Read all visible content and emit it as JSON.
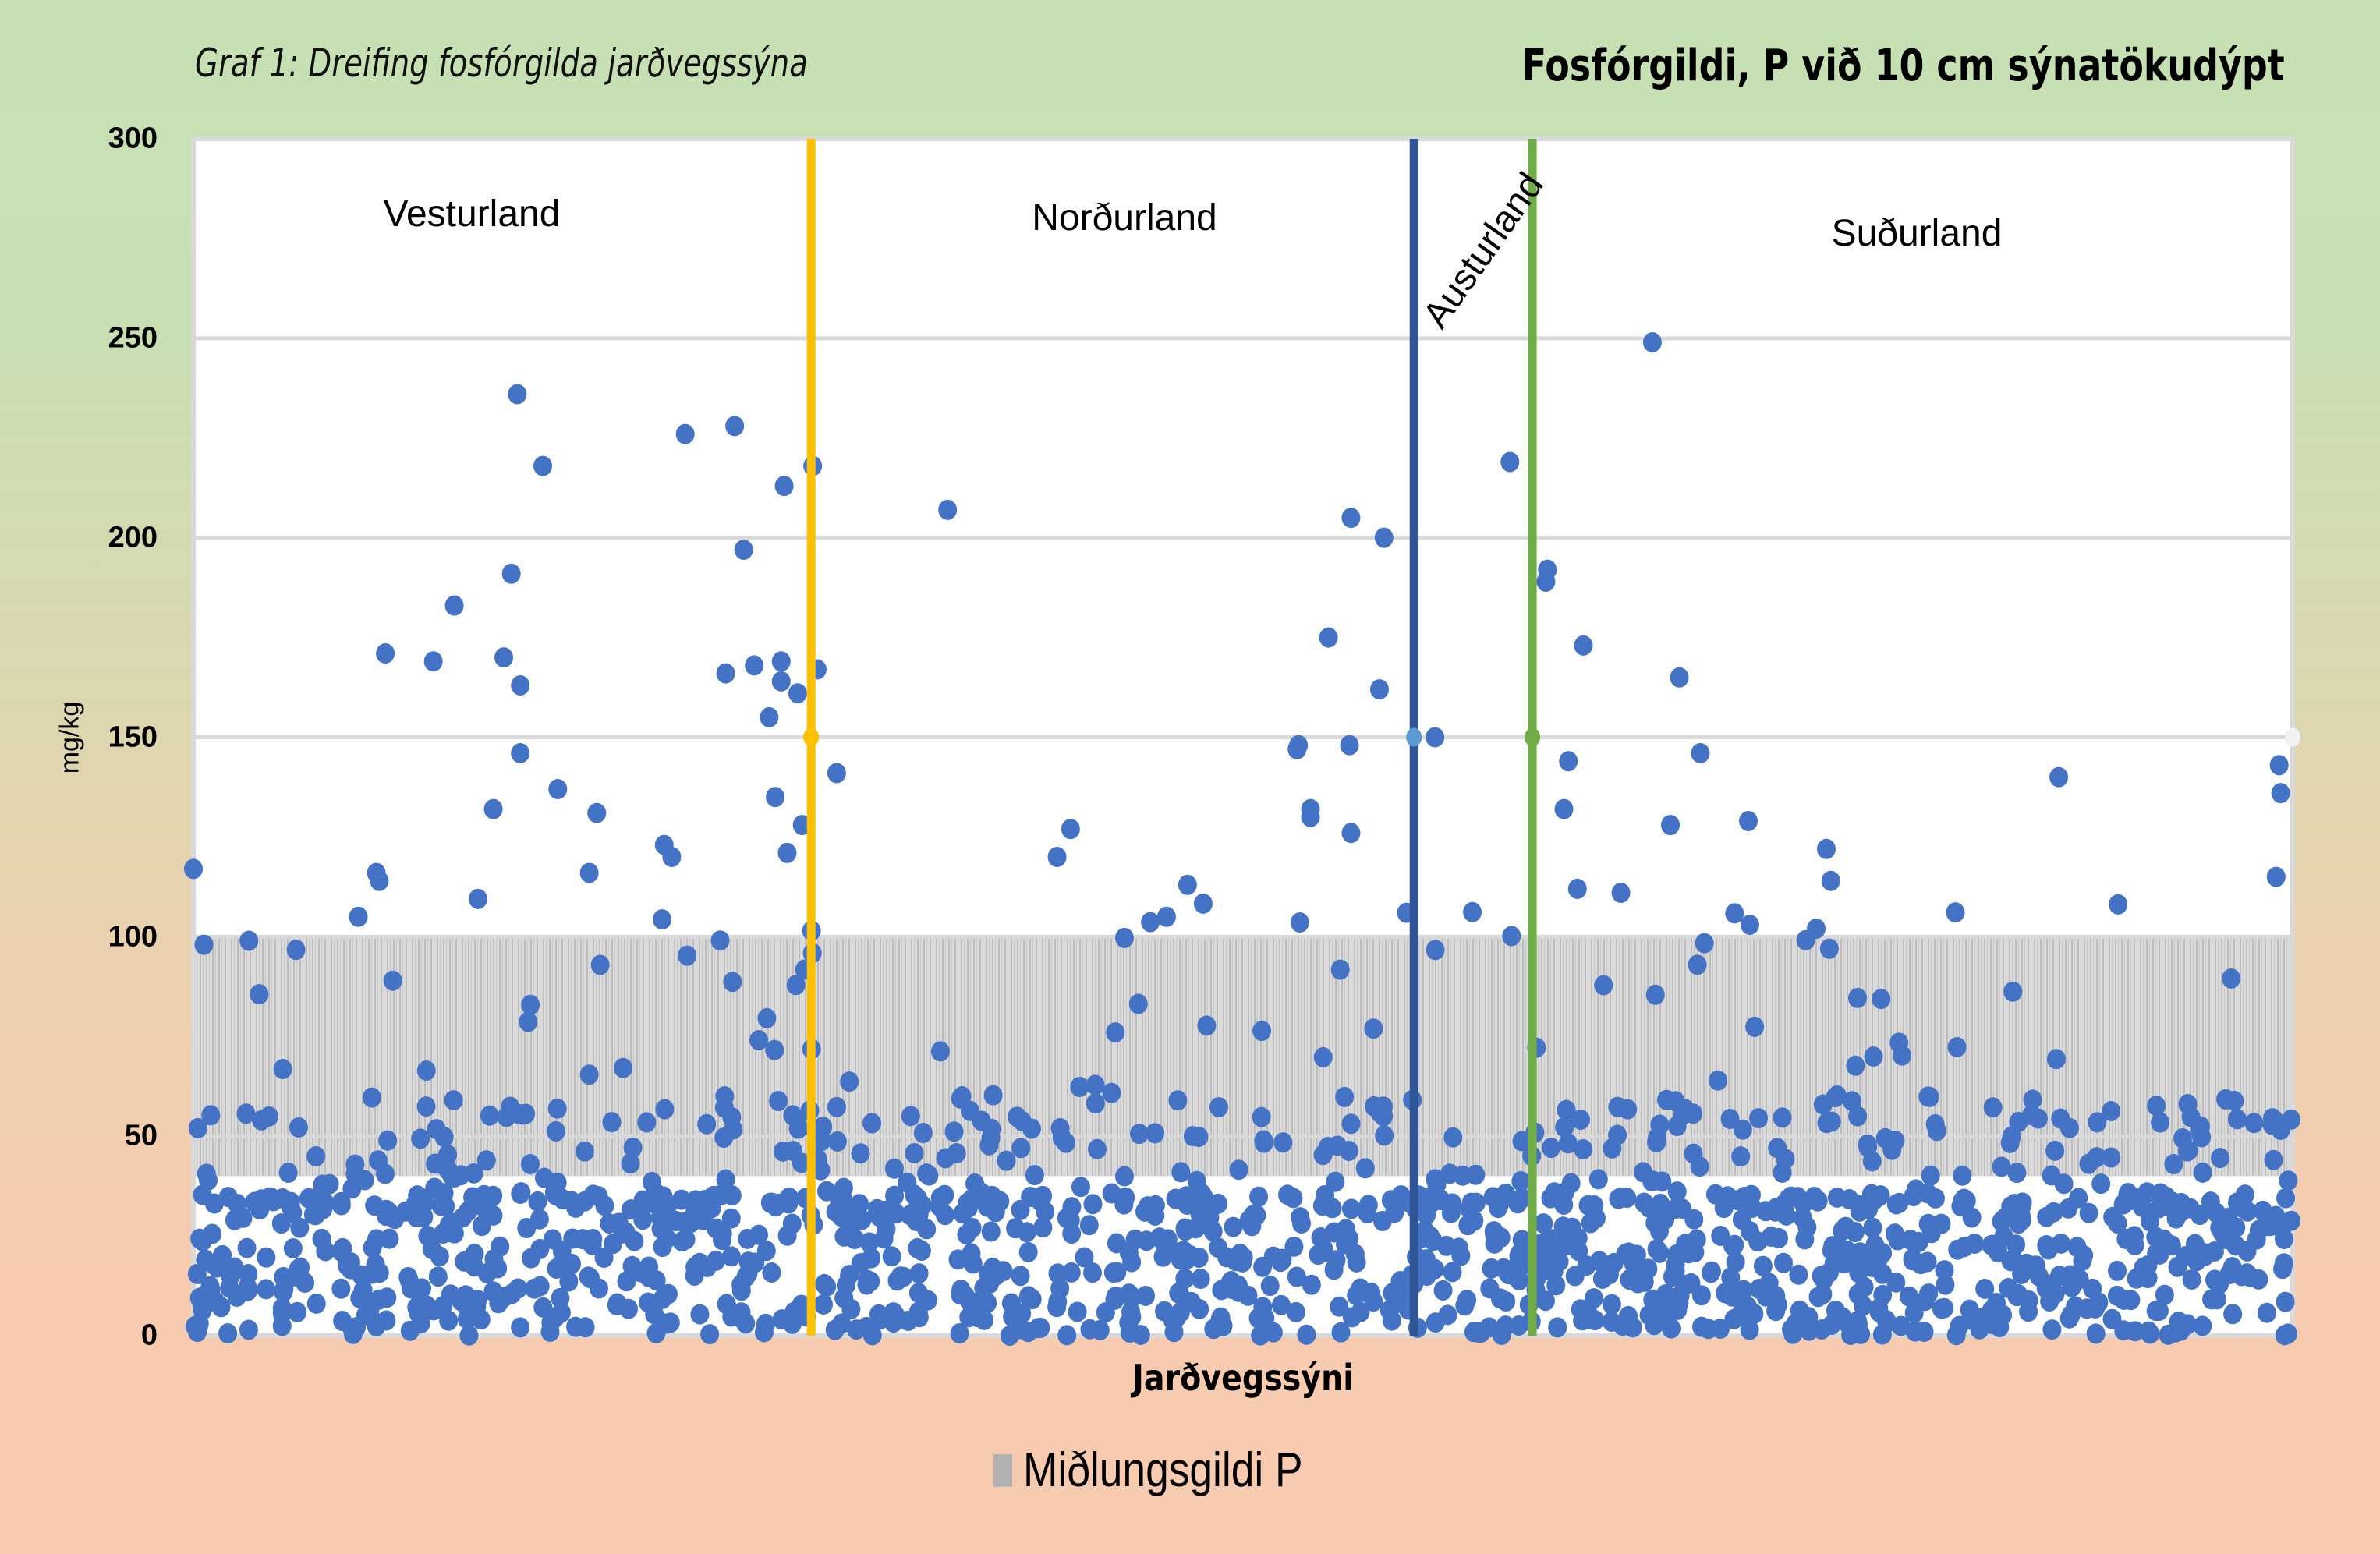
{
  "header": {
    "subtitle": "Graf 1: Dreifing fosfórgilda jarðvegssýna",
    "title": "Fosfórgildi, P við 10 cm sýnatökudýpt"
  },
  "chart_data": {
    "type": "scatter",
    "title": "Fosfórgildi, P við 10 cm sýnatökudýpt",
    "subtitle": "Graf 1: Dreifing fosfórgilda jarðvegssýna",
    "xlabel": "Jarðvegssýni",
    "ylabel": "mg/kg",
    "ylim": [
      0,
      300
    ],
    "yticks": [
      0,
      50,
      100,
      150,
      200,
      250,
      300
    ],
    "ytick_labels": [
      "0",
      "50",
      "100",
      "150",
      "200",
      "250",
      "300"
    ],
    "grid": true,
    "x_range": [
      0,
      1400
    ],
    "colors": {
      "points": "#4472c4",
      "band": "#c8c8c8",
      "divider_vesturland_nordurland": "#ffc000",
      "divider_nordurland_austurland": "#2f5597",
      "divider_austurland_sudurland": "#70ad47",
      "gridline": "#d9d9d9"
    },
    "band": {
      "name": "Miðlungsgildi P",
      "from": 40,
      "to": 100
    },
    "legend": {
      "position": "bottom",
      "entries": [
        "Miðlungsgildi P"
      ]
    },
    "regions": [
      {
        "name": "Vesturland",
        "x_start": 0,
        "x_end": 412
      },
      {
        "name": "Norðurland",
        "x_start": 412,
        "x_end": 814
      },
      {
        "name": "Austurland",
        "x_start": 814,
        "x_end": 893
      },
      {
        "name": "Suðurland",
        "x_start": 893,
        "x_end": 1400
      }
    ],
    "dividers": [
      {
        "x": 412,
        "color": "#ffc000",
        "marker_y": 150
      },
      {
        "x": 814,
        "color": "#2f5597",
        "marker_y": 150
      },
      {
        "x": 893,
        "color": "#70ad47",
        "marker_y": 150
      }
    ],
    "highlight_points": [
      {
        "x": 0,
        "y": 117
      },
      {
        "x": 7,
        "y": 98
      },
      {
        "x": 3,
        "y": 52
      },
      {
        "x": 110,
        "y": 105
      },
      {
        "x": 122,
        "y": 116
      },
      {
        "x": 124,
        "y": 114
      },
      {
        "x": 128,
        "y": 171
      },
      {
        "x": 160,
        "y": 169
      },
      {
        "x": 174,
        "y": 183
      },
      {
        "x": 200,
        "y": 132
      },
      {
        "x": 207,
        "y": 170
      },
      {
        "x": 212,
        "y": 191
      },
      {
        "x": 216,
        "y": 236
      },
      {
        "x": 218,
        "y": 163
      },
      {
        "x": 218,
        "y": 146
      },
      {
        "x": 233,
        "y": 218
      },
      {
        "x": 243,
        "y": 137
      },
      {
        "x": 269,
        "y": 131
      },
      {
        "x": 264,
        "y": 116
      },
      {
        "x": 314,
        "y": 123
      },
      {
        "x": 319,
        "y": 120
      },
      {
        "x": 328,
        "y": 226
      },
      {
        "x": 355,
        "y": 166
      },
      {
        "x": 361,
        "y": 228
      },
      {
        "x": 367,
        "y": 197
      },
      {
        "x": 374,
        "y": 168
      },
      {
        "x": 384,
        "y": 155
      },
      {
        "x": 388,
        "y": 135
      },
      {
        "x": 392,
        "y": 169
      },
      {
        "x": 392,
        "y": 164
      },
      {
        "x": 394,
        "y": 213
      },
      {
        "x": 396,
        "y": 121
      },
      {
        "x": 403,
        "y": 161
      },
      {
        "x": 406,
        "y": 128
      },
      {
        "x": 413,
        "y": 218
      },
      {
        "x": 416,
        "y": 167
      },
      {
        "x": 429,
        "y": 141
      },
      {
        "x": 503,
        "y": 207
      },
      {
        "x": 576,
        "y": 120
      },
      {
        "x": 585,
        "y": 127
      },
      {
        "x": 649,
        "y": 105
      },
      {
        "x": 663,
        "y": 113
      },
      {
        "x": 736,
        "y": 147
      },
      {
        "x": 737,
        "y": 148
      },
      {
        "x": 745,
        "y": 130
      },
      {
        "x": 745,
        "y": 132
      },
      {
        "x": 757,
        "y": 175
      },
      {
        "x": 772,
        "y": 205
      },
      {
        "x": 771,
        "y": 148
      },
      {
        "x": 772,
        "y": 126
      },
      {
        "x": 794,
        "y": 200
      },
      {
        "x": 791,
        "y": 162
      },
      {
        "x": 809,
        "y": 106
      },
      {
        "x": 828,
        "y": 150
      },
      {
        "x": 878,
        "y": 219
      },
      {
        "x": 903,
        "y": 192
      },
      {
        "x": 902,
        "y": 189
      },
      {
        "x": 927,
        "y": 173
      },
      {
        "x": 914,
        "y": 132
      },
      {
        "x": 917,
        "y": 144
      },
      {
        "x": 923,
        "y": 112
      },
      {
        "x": 952,
        "y": 111
      },
      {
        "x": 973,
        "y": 249
      },
      {
        "x": 985,
        "y": 128
      },
      {
        "x": 991,
        "y": 165
      },
      {
        "x": 1005,
        "y": 146
      },
      {
        "x": 1037,
        "y": 129
      },
      {
        "x": 1038,
        "y": 103
      },
      {
        "x": 1089,
        "y": 122
      },
      {
        "x": 1092,
        "y": 114
      },
      {
        "x": 1091,
        "y": 97
      },
      {
        "x": 1244,
        "y": 140
      },
      {
        "x": 1391,
        "y": 143
      },
      {
        "x": 1392,
        "y": 136
      },
      {
        "x": 1389,
        "y": 115
      }
    ],
    "bulk_distribution": {
      "description": "Dense cloud of samples mostly between 0 and 60 mg/kg in every region",
      "typical_range": [
        0,
        60
      ],
      "approx_total_samples": 1400
    }
  },
  "plot": {
    "region_labels": [
      "Vesturland",
      "Norðurland",
      "Austurland",
      "Suðurland"
    ]
  },
  "axes": {
    "ylabel": "mg/kg",
    "xlabel": "Jarðvegssýni",
    "yticks": [
      "300",
      "250",
      "200",
      "150",
      "100",
      "50",
      "0"
    ]
  },
  "legend": {
    "label": "Miðlungsgildi P"
  }
}
